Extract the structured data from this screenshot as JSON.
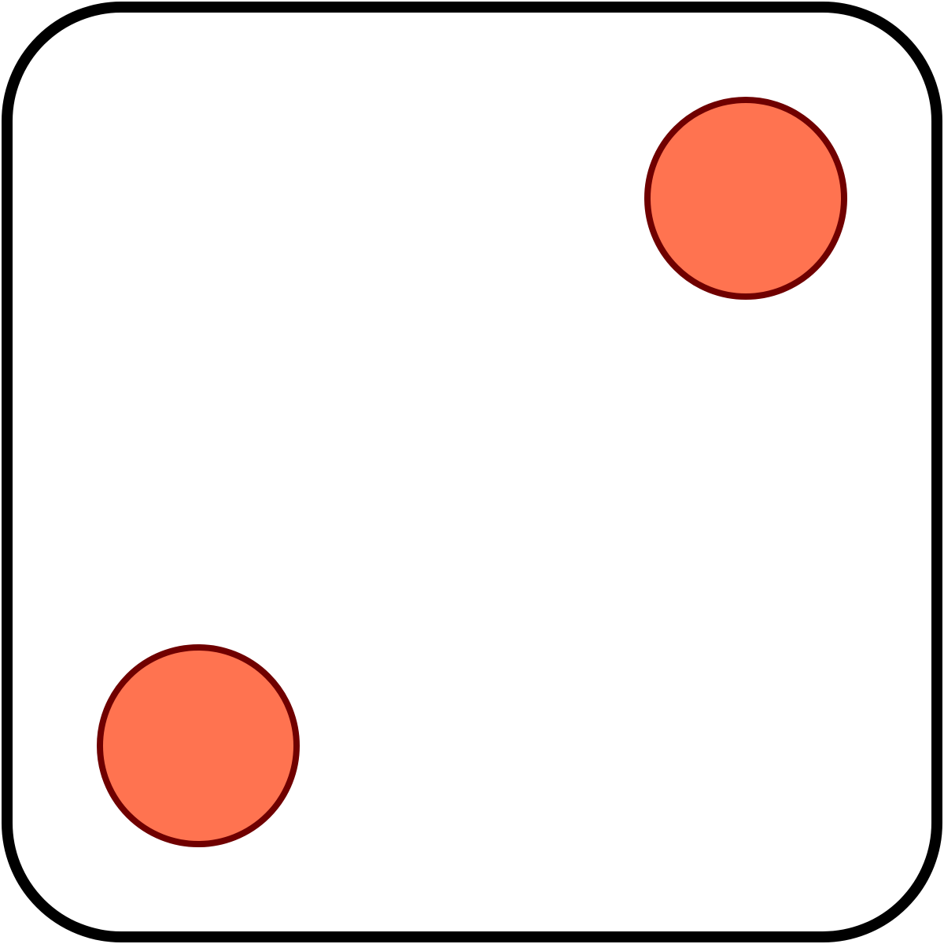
{
  "die": {
    "face_value": 2,
    "face_color": "#ffffff",
    "border_color": "#000000",
    "pip_fill_color": "#ff7350",
    "pip_stroke_color": "#700000"
  }
}
